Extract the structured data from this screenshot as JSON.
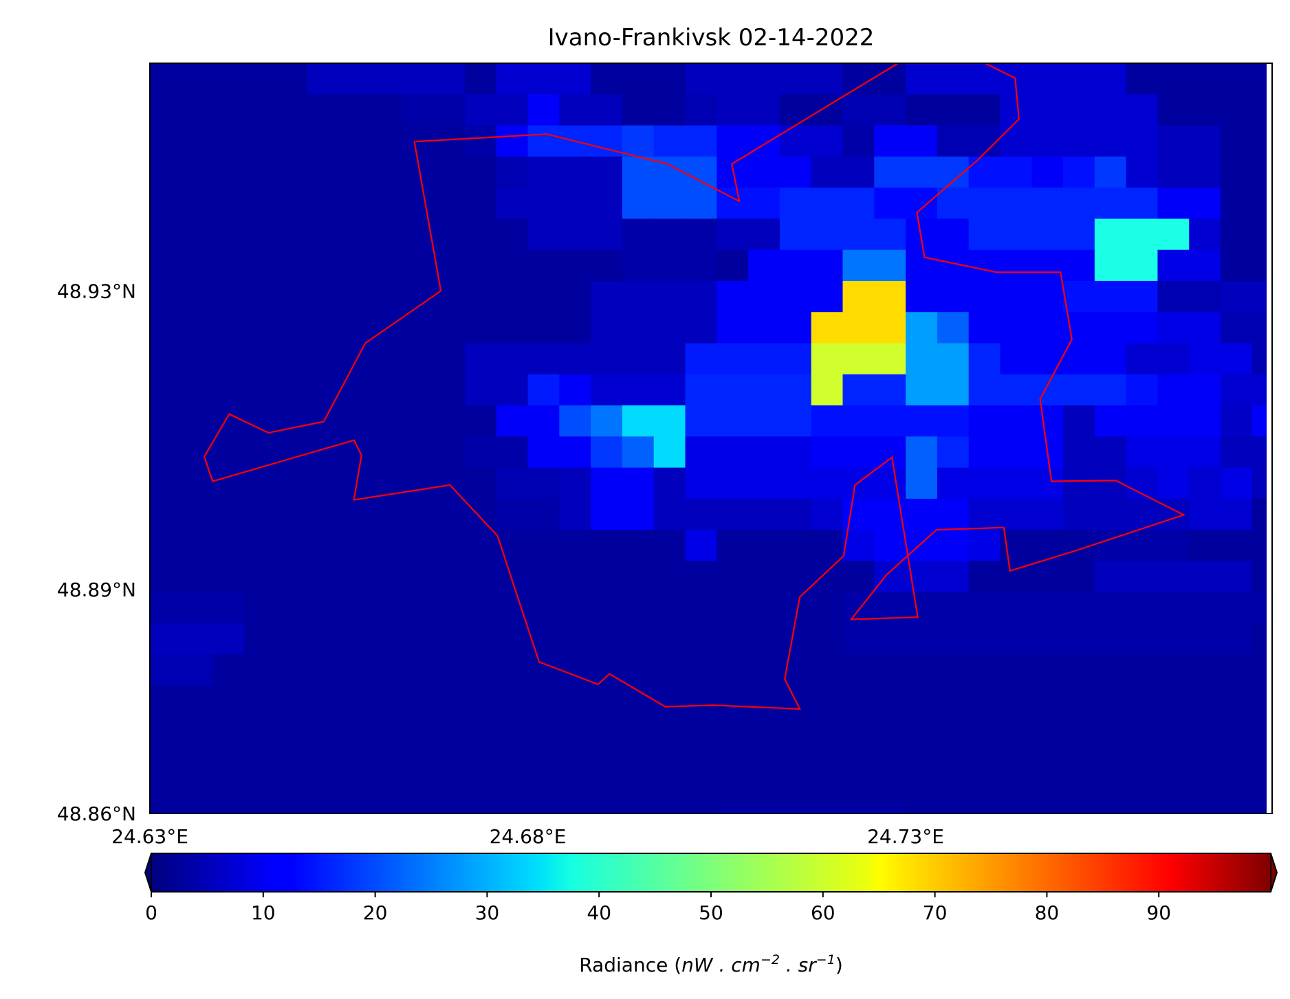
{
  "chart_data": {
    "type": "heatmap",
    "title": "Ivano-Frankivsk 02-14-2022",
    "colormap": "jet",
    "value_range": [
      0,
      100
    ],
    "colorbar": {
      "ticks": [
        "0",
        "10",
        "20",
        "30",
        "40",
        "50",
        "60",
        "70",
        "80",
        "90"
      ],
      "tick_values": [
        0,
        10,
        20,
        30,
        40,
        50,
        60,
        70,
        80,
        90
      ],
      "label_main": "Radiance (",
      "label_math": "nW . cm",
      "label_exp1": "−2",
      "label_mid": " . sr",
      "label_exp2": "−1",
      "label_end": ")",
      "extend": "both"
    },
    "x_axis": {
      "range": [
        24.63,
        24.7785
      ],
      "ticks": [
        "24.63°E",
        "24.68°E",
        "24.73°E"
      ],
      "tick_values": [
        24.63,
        24.68,
        24.73
      ]
    },
    "y_axis": {
      "range": [
        48.86,
        48.9605
      ],
      "ticks": [
        "48.86°N",
        "48.89°N",
        "48.93°N"
      ],
      "tick_values": [
        48.86,
        48.89,
        48.93
      ]
    },
    "grid": {
      "lon0": 24.63,
      "lat0": 48.9605,
      "dlon": 0.004167,
      "dlat": 0.004167,
      "values": [
        [
          3,
          3,
          3,
          3,
          3,
          6,
          6,
          6,
          6,
          6,
          3,
          8,
          8,
          8,
          3,
          3,
          3,
          6,
          6,
          6,
          6,
          6,
          3,
          3,
          8,
          8,
          8,
          8,
          8,
          8,
          8,
          3,
          3,
          3,
          3,
          3
        ],
        [
          3,
          3,
          3,
          3,
          3,
          3,
          3,
          3,
          4,
          4,
          6,
          6,
          12,
          6,
          6,
          3,
          3,
          5,
          6,
          6,
          3,
          3,
          5,
          5,
          3,
          3,
          3,
          8,
          8,
          8,
          8,
          8,
          3,
          3,
          3,
          3
        ],
        [
          3,
          3,
          3,
          3,
          3,
          3,
          3,
          3,
          3,
          3,
          4,
          12,
          16,
          16,
          16,
          18,
          16,
          16,
          12,
          12,
          8,
          8,
          4,
          12,
          12,
          5,
          5,
          8,
          8,
          8,
          8,
          8,
          6,
          6,
          3,
          3
        ],
        [
          3,
          3,
          3,
          3,
          3,
          3,
          3,
          3,
          3,
          3,
          3,
          5,
          6,
          6,
          6,
          20,
          20,
          20,
          12,
          12,
          12,
          6,
          6,
          18,
          18,
          18,
          14,
          14,
          12,
          14,
          18,
          8,
          6,
          6,
          3,
          3
        ],
        [
          3,
          3,
          3,
          3,
          3,
          3,
          3,
          3,
          3,
          3,
          3,
          6,
          6,
          6,
          6,
          20,
          20,
          20,
          14,
          14,
          16,
          16,
          16,
          13,
          13,
          16,
          16,
          16,
          16,
          16,
          16,
          16,
          12,
          12,
          3,
          3
        ],
        [
          3,
          3,
          3,
          3,
          3,
          3,
          3,
          3,
          3,
          3,
          3,
          3,
          6,
          6,
          6,
          4,
          4,
          4,
          6,
          6,
          16,
          16,
          16,
          16,
          12,
          12,
          16,
          16,
          16,
          16,
          40,
          40,
          40,
          8,
          3,
          3
        ],
        [
          3,
          3,
          3,
          3,
          3,
          3,
          3,
          3,
          3,
          3,
          3,
          3,
          3,
          3,
          3,
          4,
          4,
          4,
          3,
          12,
          12,
          12,
          24,
          24,
          12,
          12,
          12,
          12,
          12,
          12,
          40,
          40,
          10,
          10,
          3,
          3
        ],
        [
          3,
          3,
          3,
          3,
          3,
          3,
          3,
          3,
          3,
          3,
          3,
          3,
          3,
          3,
          6,
          6,
          6,
          6,
          12,
          12,
          12,
          12,
          66,
          66,
          12,
          12,
          12,
          12,
          12,
          14,
          14,
          14,
          5,
          5,
          6,
          6
        ],
        [
          3,
          3,
          3,
          3,
          3,
          3,
          3,
          3,
          3,
          3,
          3,
          3,
          3,
          3,
          6,
          6,
          6,
          6,
          12,
          12,
          12,
          66,
          66,
          66,
          28,
          22,
          12,
          12,
          12,
          12,
          12,
          12,
          10,
          10,
          5,
          5
        ],
        [
          3,
          3,
          3,
          3,
          3,
          3,
          3,
          3,
          3,
          3,
          6,
          6,
          6,
          6,
          6,
          6,
          6,
          15,
          15,
          15,
          15,
          58,
          58,
          58,
          28,
          28,
          16,
          12,
          12,
          12,
          12,
          8,
          8,
          10,
          10,
          5
        ],
        [
          3,
          3,
          3,
          3,
          3,
          3,
          3,
          3,
          3,
          3,
          6,
          6,
          15,
          12,
          8,
          8,
          8,
          16,
          16,
          16,
          16,
          58,
          16,
          16,
          28,
          28,
          16,
          16,
          16,
          16,
          16,
          14,
          12,
          12,
          8,
          8
        ],
        [
          3,
          3,
          3,
          3,
          3,
          3,
          3,
          3,
          3,
          3,
          3,
          12,
          12,
          20,
          24,
          34,
          34,
          16,
          16,
          16,
          16,
          14,
          14,
          14,
          14,
          14,
          12,
          12,
          12,
          6,
          12,
          12,
          12,
          12,
          7,
          12
        ],
        [
          3,
          3,
          3,
          3,
          3,
          3,
          3,
          3,
          3,
          3,
          4,
          4,
          12,
          12,
          18,
          22,
          34,
          10,
          10,
          10,
          10,
          12,
          12,
          12,
          22,
          16,
          12,
          12,
          12,
          6,
          6,
          10,
          10,
          10,
          6,
          6
        ],
        [
          3,
          3,
          3,
          3,
          3,
          3,
          3,
          3,
          3,
          3,
          3,
          5,
          5,
          6,
          12,
          12,
          6,
          10,
          10,
          10,
          10,
          10,
          10,
          10,
          22,
          10,
          10,
          10,
          10,
          6,
          6,
          8,
          10,
          8,
          10,
          6
        ],
        [
          3,
          3,
          3,
          3,
          3,
          3,
          3,
          3,
          3,
          3,
          3,
          4,
          4,
          6,
          12,
          12,
          6,
          6,
          6,
          6,
          6,
          8,
          12,
          12,
          12,
          12,
          8,
          8,
          8,
          6,
          6,
          6,
          6,
          8,
          8,
          3
        ],
        [
          3,
          3,
          3,
          3,
          3,
          3,
          3,
          3,
          3,
          3,
          3,
          3,
          3,
          3,
          3,
          3,
          3,
          10,
          3,
          3,
          3,
          3,
          10,
          12,
          12,
          12,
          10,
          3,
          3,
          3,
          4,
          4,
          4,
          3,
          3,
          3
        ],
        [
          3,
          3,
          3,
          3,
          3,
          3,
          3,
          3,
          3,
          3,
          3,
          3,
          3,
          3,
          3,
          3,
          3,
          3,
          3,
          3,
          3,
          3,
          3,
          8,
          8,
          8,
          3,
          3,
          3,
          3,
          6,
          6,
          6,
          6,
          6,
          3
        ],
        [
          4,
          4,
          4,
          3,
          3,
          3,
          3,
          3,
          3,
          3,
          3,
          3,
          3,
          3,
          3,
          3,
          3,
          3,
          3,
          3,
          3,
          3,
          4,
          4,
          4,
          4,
          4,
          4,
          4,
          4,
          4,
          4,
          4,
          4,
          4,
          4
        ],
        [
          6,
          6,
          6,
          3,
          3,
          3,
          3,
          3,
          3,
          3,
          3,
          3,
          3,
          3,
          3,
          3,
          3,
          3,
          3,
          3,
          3,
          3,
          4,
          4,
          4,
          4,
          4,
          4,
          4,
          4,
          4,
          4,
          4,
          4,
          4,
          3
        ],
        [
          5,
          5,
          3,
          3,
          3,
          3,
          3,
          3,
          3,
          3,
          3,
          3,
          3,
          3,
          3,
          3,
          3,
          3,
          3,
          3,
          3,
          3,
          3,
          3,
          3,
          3,
          3,
          3,
          3,
          3,
          3,
          3,
          3,
          3,
          3,
          3
        ],
        [
          3,
          3,
          3,
          3,
          3,
          3,
          3,
          3,
          3,
          3,
          3,
          3,
          3,
          3,
          3,
          3,
          3,
          3,
          3,
          3,
          3,
          3,
          3,
          3,
          3,
          3,
          3,
          3,
          3,
          3,
          3,
          3,
          3,
          3,
          3,
          3
        ],
        [
          3,
          3,
          3,
          3,
          3,
          3,
          3,
          3,
          3,
          3,
          3,
          3,
          3,
          3,
          3,
          3,
          3,
          3,
          3,
          3,
          3,
          3,
          3,
          3,
          3,
          3,
          3,
          3,
          3,
          3,
          3,
          3,
          3,
          3,
          3,
          3
        ],
        [
          3,
          3,
          3,
          3,
          3,
          3,
          3,
          3,
          3,
          3,
          3,
          3,
          3,
          3,
          3,
          3,
          3,
          3,
          3,
          3,
          3,
          3,
          3,
          3,
          3,
          3,
          3,
          3,
          3,
          3,
          3,
          3,
          3,
          3,
          3,
          3
        ],
        [
          3,
          3,
          3,
          3,
          3,
          3,
          3,
          3,
          3,
          3,
          3,
          3,
          3,
          3,
          3,
          3,
          3,
          3,
          3,
          3,
          3,
          3,
          3,
          3,
          3,
          3,
          3,
          3,
          3,
          3,
          3,
          3,
          3,
          3,
          3,
          3
        ],
        [
          3,
          3,
          3,
          3,
          3,
          3,
          3,
          3,
          3,
          3,
          3,
          3,
          3,
          3,
          3,
          3,
          3,
          3,
          5,
          5,
          5,
          5,
          5,
          5,
          3,
          3,
          3,
          3,
          3,
          3,
          3,
          3,
          3,
          3,
          3,
          3
        ]
      ]
    },
    "boundary": {
      "color": "#ff0000",
      "points": [
        [
          24.665,
          48.95
        ],
        [
          24.6825,
          48.951
        ],
        [
          24.6985,
          48.947
        ],
        [
          24.708,
          48.942
        ],
        [
          24.707,
          48.947
        ],
        [
          24.729,
          48.9605
        ],
        [
          24.7405,
          48.9605
        ],
        [
          24.7445,
          48.9585
        ],
        [
          24.745,
          48.953
        ],
        [
          24.7395,
          48.9475
        ],
        [
          24.7315,
          48.9405
        ],
        [
          24.7325,
          48.9345
        ],
        [
          24.742,
          48.9325
        ],
        [
          24.7505,
          48.9325
        ],
        [
          24.752,
          48.9235
        ],
        [
          24.7478,
          48.9155
        ],
        [
          24.7493,
          48.9045
        ],
        [
          24.7578,
          48.9046
        ],
        [
          24.7668,
          48.9
        ],
        [
          24.7525,
          48.8952
        ],
        [
          24.7438,
          48.8925
        ],
        [
          24.743,
          48.8983
        ],
        [
          24.7341,
          48.898
        ],
        [
          24.7275,
          48.892
        ],
        [
          24.7228,
          48.886
        ],
        [
          24.7316,
          48.8863
        ],
        [
          24.7282,
          48.9077
        ],
        [
          24.7233,
          48.904
        ],
        [
          24.7218,
          48.8945
        ],
        [
          24.716,
          48.889
        ],
        [
          24.714,
          48.878
        ],
        [
          24.716,
          48.874
        ],
        [
          24.7045,
          48.8745
        ],
        [
          24.6982,
          48.8743
        ],
        [
          24.6908,
          48.8787
        ],
        [
          24.6893,
          48.8773
        ],
        [
          24.6815,
          48.8803
        ],
        [
          24.6785,
          48.8895
        ],
        [
          24.676,
          48.8972
        ],
        [
          24.6697,
          48.904
        ],
        [
          24.657,
          48.902
        ],
        [
          24.658,
          48.908
        ],
        [
          24.657,
          48.91
        ],
        [
          24.6383,
          48.9045
        ],
        [
          24.6372,
          48.9078
        ],
        [
          24.6405,
          48.9135
        ],
        [
          24.6457,
          48.911
        ],
        [
          24.653,
          48.9125
        ],
        [
          24.6585,
          48.923
        ],
        [
          24.6685,
          48.93
        ]
      ]
    }
  }
}
